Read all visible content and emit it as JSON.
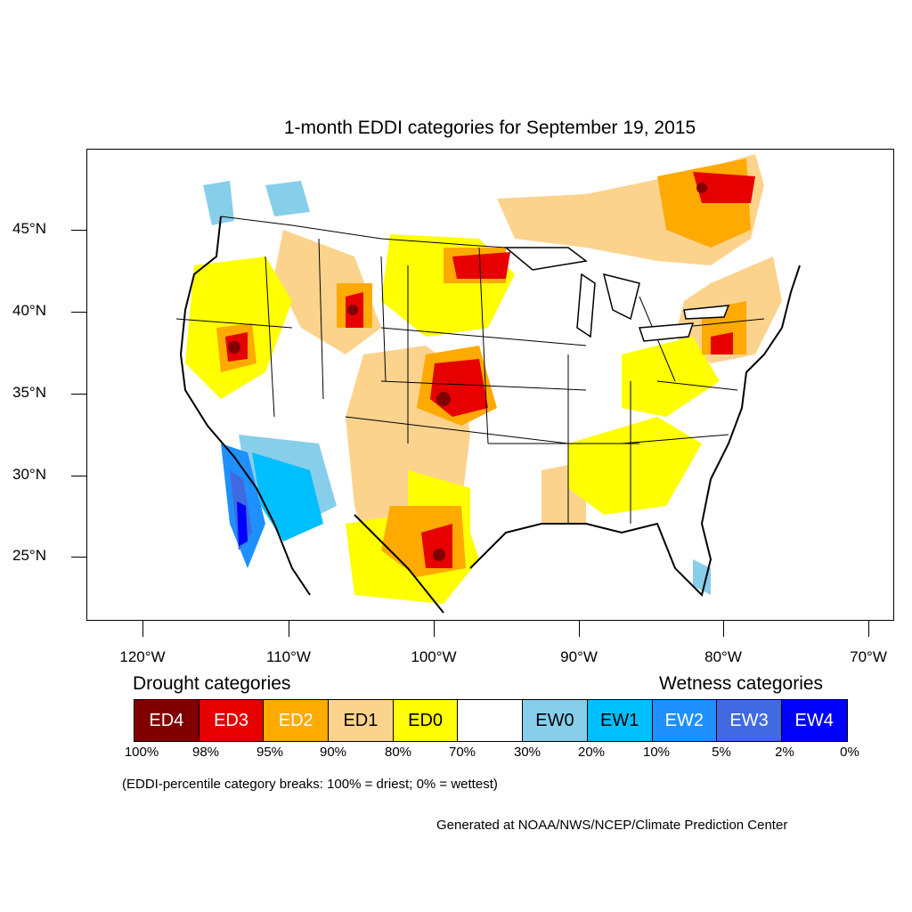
{
  "title": "1-month EDDI categories for September 19, 2015",
  "lat_labels": [
    "45°N",
    "40°N",
    "35°N",
    "30°N",
    "25°N"
  ],
  "lon_labels": [
    "120°W",
    "110°W",
    "100°W",
    "90°W",
    "80°W",
    "70°W"
  ],
  "drought_heading": "Drought categories",
  "wetness_heading": "Wetness categories",
  "legend": [
    {
      "label": "ED4",
      "color": "#800000",
      "text_color": "#ffffff"
    },
    {
      "label": "ED3",
      "color": "#e60000",
      "text_color": "#ffffff"
    },
    {
      "label": "ED2",
      "color": "#ffaa00",
      "text_color": "#ffffff"
    },
    {
      "label": "ED1",
      "color": "#fcd38d",
      "text_color": "#000000"
    },
    {
      "label": "ED0",
      "color": "#ffff00",
      "text_color": "#000000"
    },
    {
      "label": "",
      "color": "#ffffff",
      "text_color": "#000000"
    },
    {
      "label": "EW0",
      "color": "#87ceeb",
      "text_color": "#000000"
    },
    {
      "label": "EW1",
      "color": "#00bfff",
      "text_color": "#000000"
    },
    {
      "label": "EW2",
      "color": "#1e90ff",
      "text_color": "#ffffff"
    },
    {
      "label": "EW3",
      "color": "#4169e1",
      "text_color": "#ffffff"
    },
    {
      "label": "EW4",
      "color": "#0000ff",
      "text_color": "#ffffff"
    }
  ],
  "percent_labels": [
    "100%",
    "98%",
    "95%",
    "90%",
    "80%",
    "70%",
    "30%",
    "20%",
    "10%",
    "5%",
    "2%",
    "0%"
  ],
  "note": "(EDDI-percentile category breaks: 100% = driest; 0% = wettest)",
  "credit": "Generated at NOAA/NWS/NCEP/Climate Prediction Center"
}
